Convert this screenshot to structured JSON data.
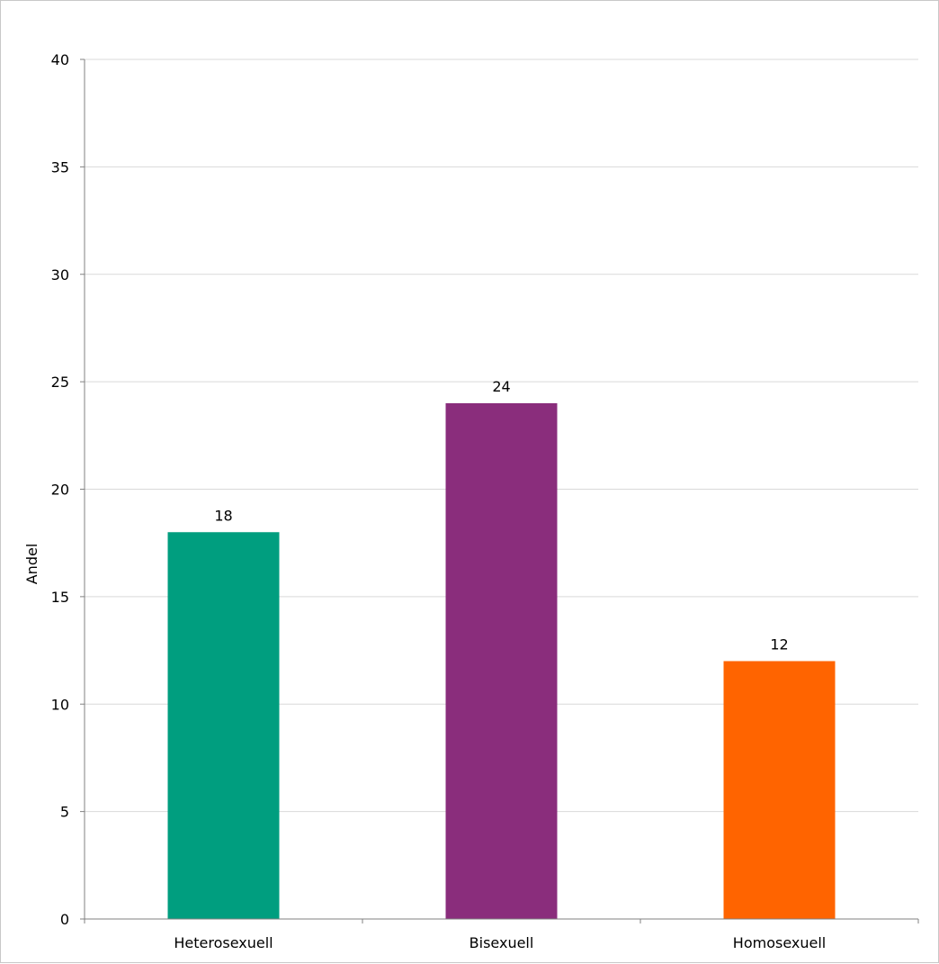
{
  "chart_data": {
    "type": "bar",
    "title": "",
    "xlabel": "",
    "ylabel": "Andel",
    "ylim": [
      0,
      40
    ],
    "yticks": [
      0,
      5,
      10,
      15,
      20,
      25,
      30,
      35,
      40
    ],
    "grid": true,
    "legend": "none",
    "categories": [
      "Heterosexuell",
      "Bisexuell",
      "Homosexuell"
    ],
    "values": [
      18,
      24,
      12
    ],
    "colors": [
      "#009e7f",
      "#8a2d7c",
      "#ff6400"
    ],
    "data_labels": [
      "18",
      "24",
      "12"
    ]
  },
  "colors": {
    "gridline": "#d9d9d9",
    "axis": "#808080"
  }
}
